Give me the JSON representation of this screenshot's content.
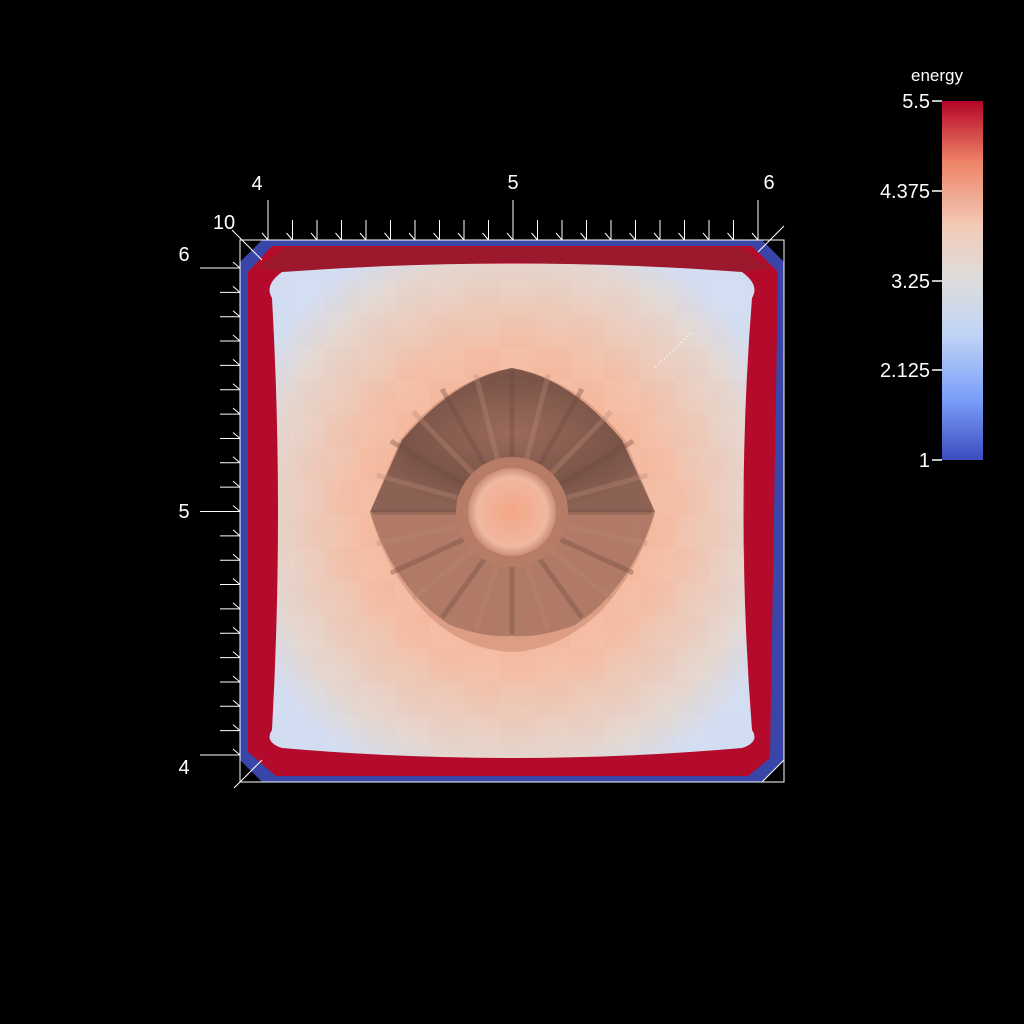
{
  "chart_data": {
    "type": "heatmap",
    "title": "",
    "xlabel": "",
    "ylabel": "",
    "x_ticks": [
      "4",
      "5",
      "6"
    ],
    "y_ticks": [
      "6",
      "5",
      "4"
    ],
    "z_tick": "10",
    "x_range": [
      4,
      6
    ],
    "y_range": [
      4,
      6
    ],
    "field": "energy",
    "colorbar": {
      "title": "energy",
      "ticks": [
        "5.5",
        "4.375",
        "3.25",
        "2.125",
        "1"
      ],
      "range": [
        1,
        5.5
      ],
      "colormap": [
        "#3b4cc0",
        "#7b9ff9",
        "#c0d4f5",
        "#dddddd",
        "#f2cbb7",
        "#ee8468",
        "#b40426"
      ]
    },
    "grid": false,
    "legend_placement": "right"
  }
}
